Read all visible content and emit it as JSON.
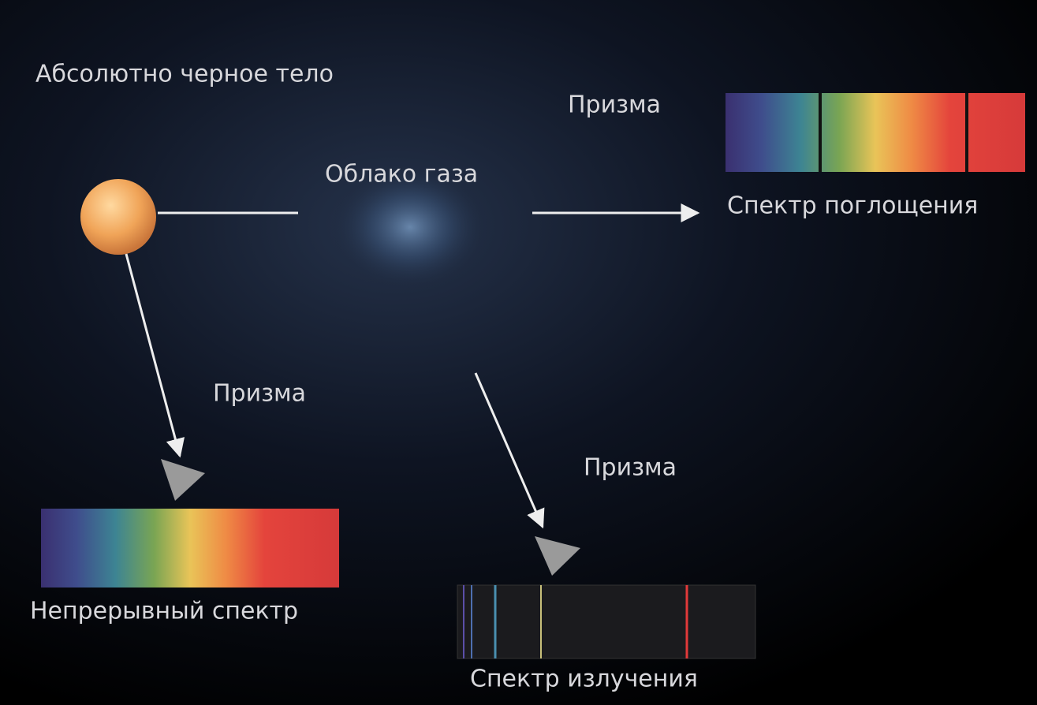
{
  "labels": {
    "blackbody": "Абсолютно черное тело",
    "gas_cloud": "Облако газа",
    "prism_top": "Призма",
    "absorption_spectrum": "Спектр поглощения",
    "prism_left": "Призма",
    "continuous_spectrum": "Непрерывный спектр",
    "prism_bottom": "Призма",
    "emission_spectrum": "Спектр излучения"
  }
}
